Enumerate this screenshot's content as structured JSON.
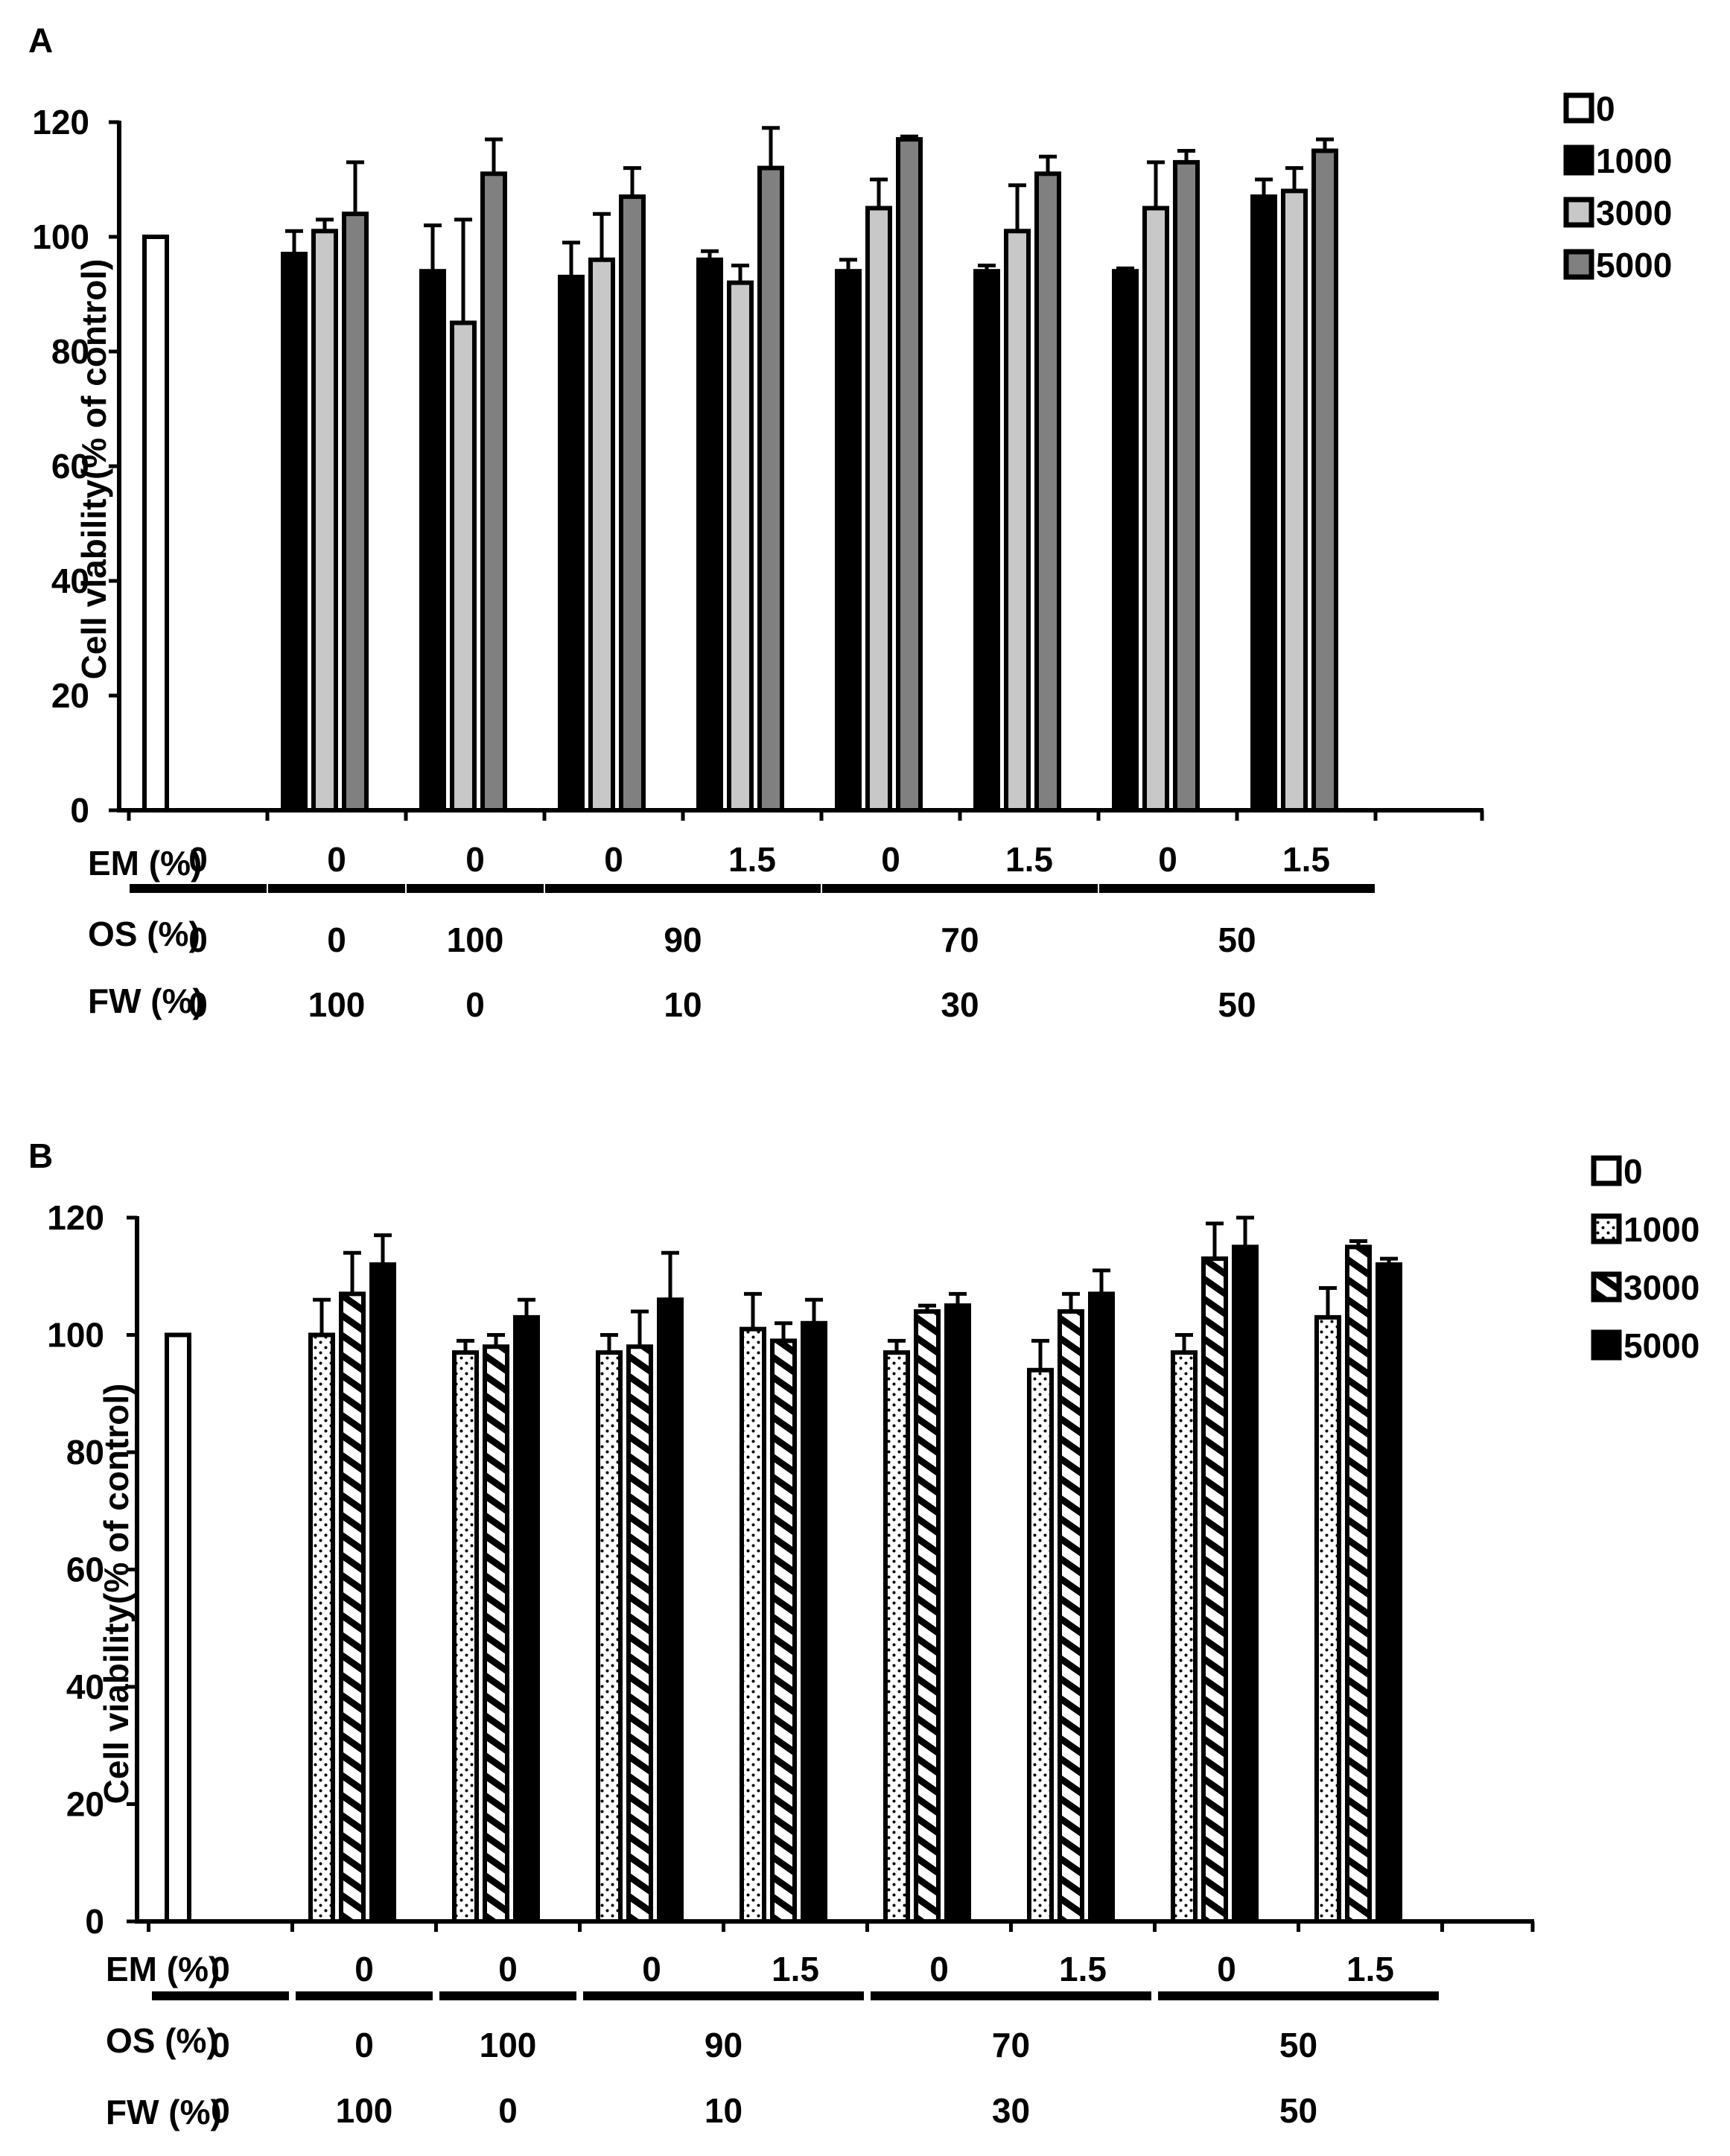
{
  "chart_data": [
    {
      "panel": "A",
      "type": "bar",
      "ylabel": "Cell viability(% of control)",
      "ylim": [
        0,
        120
      ],
      "yticks": [
        0,
        20,
        40,
        60,
        80,
        100,
        120
      ],
      "legend_position": "top-right",
      "colors": {
        "0": "#ffffff",
        "1000": "#000000",
        "3000": "#c8c8c8",
        "5000": "#808080"
      },
      "row_labels": {
        "em": "EM (%)",
        "os": "OS (%)",
        "fw": "FW (%)"
      },
      "em_labels": [
        "0",
        "0",
        "0",
        "0",
        "1.5",
        "0",
        "1.5",
        "0",
        "1.5"
      ],
      "os_groups": [
        {
          "label": "0",
          "span": [
            0,
            0
          ]
        },
        {
          "label": "0",
          "span": [
            1,
            1
          ]
        },
        {
          "label": "100",
          "span": [
            2,
            2
          ]
        },
        {
          "label": "90",
          "span": [
            3,
            4
          ]
        },
        {
          "label": "70",
          "span": [
            5,
            6
          ]
        },
        {
          "label": "50",
          "span": [
            7,
            8
          ]
        }
      ],
      "fw_groups": [
        {
          "label": "0",
          "span": [
            0,
            0
          ]
        },
        {
          "label": "100",
          "span": [
            1,
            1
          ]
        },
        {
          "label": "0",
          "span": [
            2,
            2
          ]
        },
        {
          "label": "10",
          "span": [
            3,
            4
          ]
        },
        {
          "label": "30",
          "span": [
            5,
            6
          ]
        },
        {
          "label": "50",
          "span": [
            7,
            8
          ]
        }
      ],
      "series": [
        {
          "name": "0",
          "values": [
            100,
            null,
            null,
            null,
            null,
            null,
            null,
            null,
            null
          ],
          "errors": [
            0,
            0,
            0,
            0,
            0,
            0,
            0,
            0,
            0
          ]
        },
        {
          "name": "1000",
          "values": [
            null,
            97,
            94,
            93,
            96,
            94,
            94,
            94,
            107
          ],
          "errors": [
            0,
            4,
            8,
            6,
            1.5,
            2,
            1,
            0.5,
            3
          ]
        },
        {
          "name": "3000",
          "values": [
            null,
            101,
            85,
            96,
            92,
            105,
            101,
            105,
            108
          ],
          "errors": [
            0,
            2,
            18,
            8,
            3,
            5,
            8,
            8,
            4
          ]
        },
        {
          "name": "5000",
          "values": [
            null,
            104,
            111,
            107,
            112,
            117,
            111,
            113,
            115
          ],
          "errors": [
            0,
            9,
            6,
            5,
            7,
            0.5,
            3,
            2,
            2
          ]
        }
      ]
    },
    {
      "panel": "B",
      "type": "bar",
      "ylabel": "Cell viability(% of control)",
      "ylim": [
        0,
        120
      ],
      "yticks": [
        0,
        20,
        40,
        60,
        80,
        100,
        120
      ],
      "legend_position": "top-right",
      "colors": {
        "0": "#ffffff",
        "1000": "dotted",
        "3000": "hatched",
        "5000": "#000000"
      },
      "row_labels": {
        "em": "EM (%)",
        "os": "OS (%)",
        "fw": "FW (%)"
      },
      "em_labels": [
        "0",
        "0",
        "0",
        "0",
        "1.5",
        "0",
        "1.5",
        "0",
        "1.5"
      ],
      "os_groups": [
        {
          "label": "0",
          "span": [
            0,
            0
          ]
        },
        {
          "label": "0",
          "span": [
            1,
            1
          ]
        },
        {
          "label": "100",
          "span": [
            2,
            2
          ]
        },
        {
          "label": "90",
          "span": [
            3,
            4
          ]
        },
        {
          "label": "70",
          "span": [
            5,
            6
          ]
        },
        {
          "label": "50",
          "span": [
            7,
            8
          ]
        }
      ],
      "fw_groups": [
        {
          "label": "0",
          "span": [
            0,
            0
          ]
        },
        {
          "label": "100",
          "span": [
            1,
            1
          ]
        },
        {
          "label": "0",
          "span": [
            2,
            2
          ]
        },
        {
          "label": "10",
          "span": [
            3,
            4
          ]
        },
        {
          "label": "30",
          "span": [
            5,
            6
          ]
        },
        {
          "label": "50",
          "span": [
            7,
            8
          ]
        }
      ],
      "series": [
        {
          "name": "0",
          "values": [
            100,
            null,
            null,
            null,
            null,
            null,
            null,
            null,
            null
          ],
          "errors": [
            0,
            0,
            0,
            0,
            0,
            0,
            0,
            0,
            0
          ]
        },
        {
          "name": "1000",
          "values": [
            null,
            100,
            97,
            97,
            101,
            97,
            94,
            97,
            103
          ],
          "errors": [
            0,
            6,
            2,
            3,
            6,
            2,
            5,
            3,
            5
          ]
        },
        {
          "name": "3000",
          "values": [
            null,
            107,
            98,
            98,
            99,
            104,
            104,
            113,
            115
          ],
          "errors": [
            0,
            7,
            2,
            6,
            3,
            1,
            3,
            6,
            1
          ]
        },
        {
          "name": "5000",
          "values": [
            null,
            112,
            103,
            106,
            102,
            105,
            107,
            115,
            112
          ],
          "errors": [
            0,
            5,
            3,
            8,
            4,
            2,
            4,
            5,
            1
          ]
        }
      ]
    }
  ]
}
